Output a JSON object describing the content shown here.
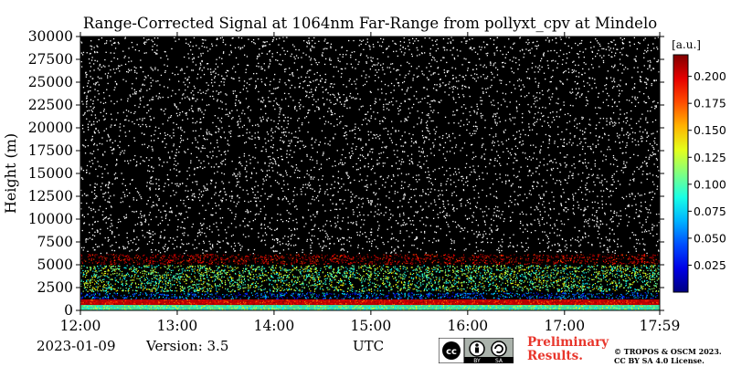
{
  "chart_data": {
    "type": "heatmap",
    "title": "Range-Corrected Signal at 1064nm Far-Range from pollyxt_cpv at Mindelo",
    "ylabel": "Height (m)",
    "xlabel": "UTC",
    "ylim": [
      0,
      30000
    ],
    "xlim": [
      "12:00",
      "17:59"
    ],
    "y_ticks": [
      0,
      2500,
      5000,
      7500,
      10000,
      12500,
      15000,
      17500,
      20000,
      22500,
      25000,
      27500,
      30000
    ],
    "x_ticks": [
      "12:00",
      "13:00",
      "14:00",
      "15:00",
      "16:00",
      "17:00",
      "17:59"
    ],
    "colorbar": {
      "label": "[a.u.]",
      "range": [
        0.0,
        0.22
      ],
      "ticks": [
        "0.025",
        "0.050",
        "0.075",
        "0.100",
        "0.125",
        "0.150",
        "0.175",
        "0.200"
      ],
      "colormap": "jet"
    },
    "layers": [
      {
        "height_range_m": [
          0,
          600
        ],
        "level": 0.1
      },
      {
        "height_range_m": [
          600,
          1200
        ],
        "level": 0.2
      },
      {
        "height_range_m": [
          1200,
          2000
        ],
        "level": 0.05
      },
      {
        "height_range_m": [
          2000,
          5000
        ],
        "level": 0.11
      },
      {
        "height_range_m": [
          5000,
          6200
        ],
        "level": 0.21
      },
      {
        "height_range_m": [
          6200,
          30000
        ],
        "level": 0.0
      }
    ],
    "background_color": "#000000",
    "noise_color": "#ffffff"
  },
  "footer": {
    "date": "2023-01-09",
    "version": "Version: 3.5",
    "timezone": "UTC",
    "preliminary": [
      "Preliminary",
      "Results."
    ],
    "copyright": [
      "© TROPOS & OSCM 2023.",
      "CC BY SA 4.0 License."
    ],
    "license_badge": {
      "by": "BY",
      "sa": "SA"
    }
  }
}
